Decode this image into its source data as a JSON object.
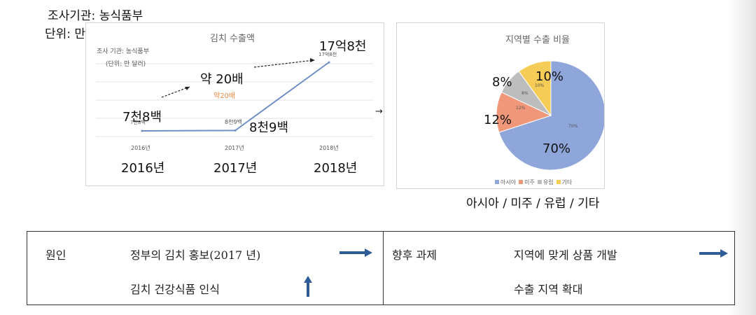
{
  "top_notes": {
    "org": "조사기관: 농식품부",
    "unit": "단위: 만 달러"
  },
  "line_panel": {
    "title": "김치 수출액",
    "inner_org": "조사 기관: 농식품부",
    "inner_unit": "(단위: 만 달러)",
    "annotations": {
      "first": "7천8백",
      "first_small": "7천8백",
      "middle": "8천9백",
      "middle_small": "8천9백",
      "last": "17억8천",
      "last_small": "17억8천",
      "growth": "약 20배",
      "growth_small": "약20배"
    },
    "x_small": [
      "2016년",
      "2017년",
      "2018년"
    ],
    "x_big": [
      "2016년",
      "2017년",
      "2018년"
    ],
    "colors": {
      "line": "#6f8fc7",
      "growth_small": "#e88a45"
    }
  },
  "pie_panel": {
    "title": "지역별 수출 비율",
    "caption": "아시아 / 미주 / 유럽 / 기타",
    "big_labels": {
      "asia": "70%",
      "americas": "12%",
      "europe": "8%",
      "other": "10%"
    },
    "small_labels": {
      "asia": "70%",
      "americas": "12%",
      "europe": "8%",
      "other": "10%"
    },
    "legend": [
      {
        "label": "아시아",
        "color": "#8ea6d9"
      },
      {
        "label": "미주",
        "color": "#f0977a"
      },
      {
        "label": "유럽",
        "color": "#bdbdbd"
      },
      {
        "label": "기타",
        "color": "#f5cc55"
      }
    ]
  },
  "chart_data": [
    {
      "type": "line",
      "title": "김치 수출액",
      "categories": [
        "2016년",
        "2017년",
        "2018년"
      ],
      "series": [
        {
          "values": [
            7800,
            8900,
            178000
          ]
        }
      ],
      "value_labels": [
        "7천8백",
        "8천9백",
        "17억8천"
      ],
      "annotation": "약 20배",
      "grid": true,
      "colors": {
        "line": "#6f8fc7"
      }
    },
    {
      "type": "pie",
      "title": "지역별 수출 비율",
      "categories": [
        "아시아",
        "미주",
        "유럽",
        "기타"
      ],
      "values": [
        70,
        12,
        8,
        10
      ],
      "colors": [
        "#8ea6d9",
        "#f0977a",
        "#bdbdbd",
        "#f5cc55"
      ],
      "legend": "bottom"
    }
  ],
  "table": {
    "left_label": "원인",
    "left_items": [
      "정부의 김치 홍보(2017 년)",
      "김치 건강식품 인식"
    ],
    "right_label": "향후 과제",
    "right_items": [
      "지역에 맞게 상품 개발",
      "수출 지역 확대"
    ],
    "arrow_color": "#2e5c96"
  },
  "connector_arrow": "→"
}
